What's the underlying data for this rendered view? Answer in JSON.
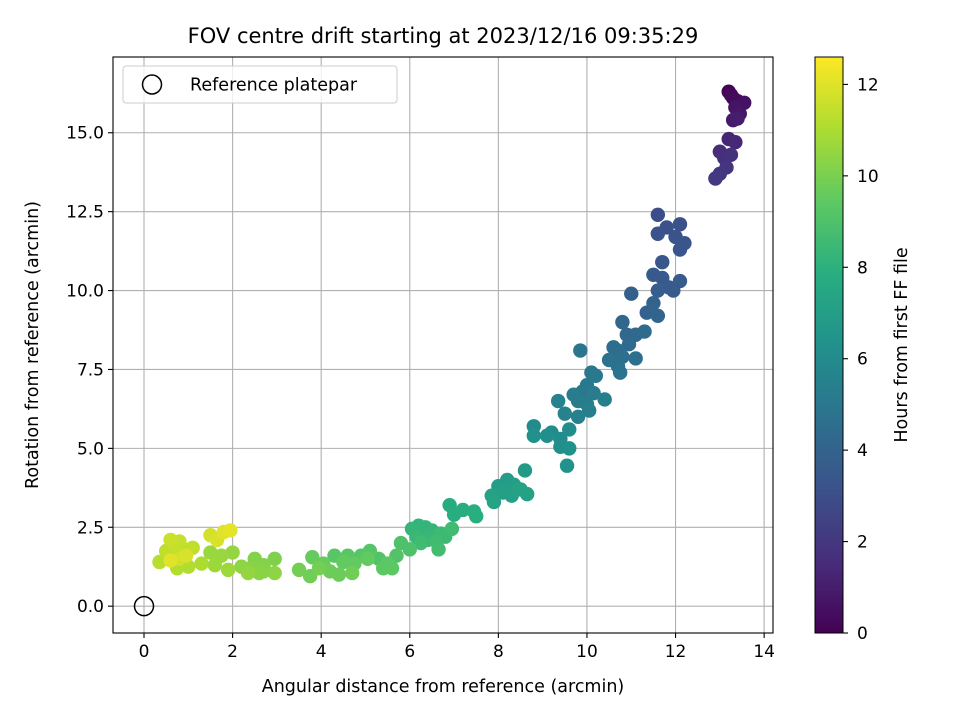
{
  "chart_data": {
    "type": "scatter",
    "title": "FOV centre drift starting at 2023/12/16 09:35:29",
    "xlabel": "Angular distance from reference (arcmin)",
    "ylabel": "Rotation from reference (arcmin)",
    "colorbar_label": "Hours from first FF file",
    "colormap": "viridis",
    "xlim": [
      -0.7,
      14.2
    ],
    "ylim": [
      -0.85,
      17.4
    ],
    "xticks": [
      0,
      2,
      4,
      6,
      8,
      10,
      12,
      14
    ],
    "xtick_labels": [
      "0",
      "2",
      "4",
      "6",
      "8",
      "10",
      "12",
      "14"
    ],
    "yticks": [
      0,
      2.5,
      5,
      7.5,
      10,
      12.5,
      15
    ],
    "ytick_labels": [
      "0.0",
      "2.5",
      "5.0",
      "7.5",
      "10.0",
      "12.5",
      "15.0"
    ],
    "clim": [
      0,
      12.6
    ],
    "colorbar_ticks": [
      0,
      2,
      4,
      6,
      8,
      10,
      12
    ],
    "colorbar_tick_labels": [
      "0",
      "2",
      "4",
      "6",
      "8",
      "10",
      "12"
    ],
    "grid": true,
    "legend": {
      "position": "top-left",
      "entries": [
        "Reference platepar"
      ]
    },
    "reference_point": {
      "x": 0,
      "y": 0,
      "label": "Reference platepar"
    },
    "series": [
      {
        "name": "",
        "points": [
          {
            "x": 13.2,
            "y": 16.3,
            "c": 0.1
          },
          {
            "x": 13.25,
            "y": 16.2,
            "c": 0.2
          },
          {
            "x": 13.3,
            "y": 16.1,
            "c": 0.3
          },
          {
            "x": 13.4,
            "y": 16.0,
            "c": 0.4
          },
          {
            "x": 13.55,
            "y": 15.95,
            "c": 0.6
          },
          {
            "x": 13.35,
            "y": 15.8,
            "c": 0.7
          },
          {
            "x": 13.45,
            "y": 15.6,
            "c": 0.8
          },
          {
            "x": 13.3,
            "y": 15.4,
            "c": 0.9
          },
          {
            "x": 13.4,
            "y": 15.45,
            "c": 1.0
          },
          {
            "x": 13.2,
            "y": 14.8,
            "c": 1.3
          },
          {
            "x": 13.35,
            "y": 14.7,
            "c": 1.4
          },
          {
            "x": 13.0,
            "y": 14.4,
            "c": 1.6
          },
          {
            "x": 13.1,
            "y": 14.2,
            "c": 1.7
          },
          {
            "x": 13.25,
            "y": 14.3,
            "c": 1.8
          },
          {
            "x": 13.15,
            "y": 13.9,
            "c": 1.9
          },
          {
            "x": 13.0,
            "y": 13.7,
            "c": 2.0
          },
          {
            "x": 12.9,
            "y": 13.55,
            "c": 2.1
          },
          {
            "x": 11.6,
            "y": 12.4,
            "c": 3.0
          },
          {
            "x": 11.8,
            "y": 12.0,
            "c": 3.1
          },
          {
            "x": 12.1,
            "y": 12.1,
            "c": 3.1
          },
          {
            "x": 11.6,
            "y": 11.8,
            "c": 3.2
          },
          {
            "x": 12.0,
            "y": 11.7,
            "c": 3.2
          },
          {
            "x": 12.2,
            "y": 11.5,
            "c": 3.3
          },
          {
            "x": 12.1,
            "y": 11.3,
            "c": 3.3
          },
          {
            "x": 11.7,
            "y": 10.9,
            "c": 3.4
          },
          {
            "x": 11.5,
            "y": 10.5,
            "c": 3.5
          },
          {
            "x": 11.7,
            "y": 10.4,
            "c": 3.5
          },
          {
            "x": 11.85,
            "y": 10.1,
            "c": 3.6
          },
          {
            "x": 12.1,
            "y": 10.3,
            "c": 3.6
          },
          {
            "x": 11.95,
            "y": 10.0,
            "c": 3.6
          },
          {
            "x": 11.6,
            "y": 10.0,
            "c": 3.7
          },
          {
            "x": 11.0,
            "y": 9.9,
            "c": 3.9
          },
          {
            "x": 11.5,
            "y": 9.6,
            "c": 4.0
          },
          {
            "x": 11.35,
            "y": 9.3,
            "c": 4.0
          },
          {
            "x": 11.6,
            "y": 9.2,
            "c": 4.1
          },
          {
            "x": 10.8,
            "y": 9.0,
            "c": 4.2
          },
          {
            "x": 10.9,
            "y": 8.6,
            "c": 4.3
          },
          {
            "x": 11.1,
            "y": 8.6,
            "c": 4.3
          },
          {
            "x": 11.3,
            "y": 8.7,
            "c": 4.4
          },
          {
            "x": 10.95,
            "y": 8.3,
            "c": 4.4
          },
          {
            "x": 10.7,
            "y": 8.1,
            "c": 4.5
          },
          {
            "x": 10.6,
            "y": 8.2,
            "c": 4.5
          },
          {
            "x": 10.8,
            "y": 7.9,
            "c": 4.6
          },
          {
            "x": 11.1,
            "y": 7.85,
            "c": 4.6
          },
          {
            "x": 10.5,
            "y": 7.8,
            "c": 4.7
          },
          {
            "x": 10.7,
            "y": 7.6,
            "c": 4.7
          },
          {
            "x": 10.75,
            "y": 7.4,
            "c": 4.8
          },
          {
            "x": 9.85,
            "y": 8.1,
            "c": 4.9
          },
          {
            "x": 10.1,
            "y": 7.4,
            "c": 5.0
          },
          {
            "x": 10.2,
            "y": 7.3,
            "c": 5.0
          },
          {
            "x": 10.0,
            "y": 7.0,
            "c": 5.1
          },
          {
            "x": 9.9,
            "y": 6.8,
            "c": 5.1
          },
          {
            "x": 10.15,
            "y": 6.75,
            "c": 5.2
          },
          {
            "x": 9.7,
            "y": 6.7,
            "c": 5.2
          },
          {
            "x": 9.8,
            "y": 6.5,
            "c": 5.3
          },
          {
            "x": 10.0,
            "y": 6.4,
            "c": 5.3
          },
          {
            "x": 10.4,
            "y": 6.55,
            "c": 5.4
          },
          {
            "x": 10.05,
            "y": 6.2,
            "c": 5.4
          },
          {
            "x": 9.8,
            "y": 6.0,
            "c": 5.5
          },
          {
            "x": 9.35,
            "y": 6.5,
            "c": 5.6
          },
          {
            "x": 9.5,
            "y": 6.1,
            "c": 5.6
          },
          {
            "x": 8.8,
            "y": 5.7,
            "c": 6.0
          },
          {
            "x": 9.2,
            "y": 5.5,
            "c": 6.0
          },
          {
            "x": 9.6,
            "y": 5.6,
            "c": 6.1
          },
          {
            "x": 9.4,
            "y": 5.3,
            "c": 6.1
          },
          {
            "x": 9.1,
            "y": 5.4,
            "c": 6.2
          },
          {
            "x": 9.4,
            "y": 5.05,
            "c": 6.2
          },
          {
            "x": 9.6,
            "y": 5.0,
            "c": 6.3
          },
          {
            "x": 9.55,
            "y": 4.45,
            "c": 6.4
          },
          {
            "x": 8.8,
            "y": 5.4,
            "c": 6.3
          },
          {
            "x": 8.6,
            "y": 4.3,
            "c": 6.8
          },
          {
            "x": 8.2,
            "y": 4.0,
            "c": 6.9
          },
          {
            "x": 8.0,
            "y": 3.8,
            "c": 6.9
          },
          {
            "x": 8.35,
            "y": 3.85,
            "c": 7.0
          },
          {
            "x": 8.5,
            "y": 3.7,
            "c": 7.0
          },
          {
            "x": 8.1,
            "y": 3.6,
            "c": 7.1
          },
          {
            "x": 8.3,
            "y": 3.5,
            "c": 7.1
          },
          {
            "x": 7.85,
            "y": 3.5,
            "c": 7.2
          },
          {
            "x": 8.65,
            "y": 3.55,
            "c": 7.2
          },
          {
            "x": 7.9,
            "y": 3.3,
            "c": 7.3
          },
          {
            "x": 8.45,
            "y": 3.7,
            "c": 7.2
          },
          {
            "x": 6.9,
            "y": 3.2,
            "c": 7.7
          },
          {
            "x": 7.2,
            "y": 3.05,
            "c": 7.8
          },
          {
            "x": 7.0,
            "y": 2.9,
            "c": 7.8
          },
          {
            "x": 7.45,
            "y": 3.0,
            "c": 7.9
          },
          {
            "x": 7.5,
            "y": 2.85,
            "c": 7.9
          },
          {
            "x": 6.2,
            "y": 2.55,
            "c": 8.2
          },
          {
            "x": 6.35,
            "y": 2.5,
            "c": 8.2
          },
          {
            "x": 6.5,
            "y": 2.4,
            "c": 8.3
          },
          {
            "x": 6.05,
            "y": 2.45,
            "c": 8.3
          },
          {
            "x": 6.15,
            "y": 2.2,
            "c": 8.4
          },
          {
            "x": 6.4,
            "y": 2.1,
            "c": 8.4
          },
          {
            "x": 6.7,
            "y": 2.3,
            "c": 8.5
          },
          {
            "x": 6.8,
            "y": 2.2,
            "c": 8.5
          },
          {
            "x": 6.6,
            "y": 2.05,
            "c": 8.6
          },
          {
            "x": 6.95,
            "y": 2.45,
            "c": 8.6
          },
          {
            "x": 6.25,
            "y": 2.0,
            "c": 8.6
          },
          {
            "x": 6.65,
            "y": 1.8,
            "c": 8.7
          },
          {
            "x": 5.8,
            "y": 2.0,
            "c": 9.0
          },
          {
            "x": 6.0,
            "y": 1.8,
            "c": 9.0
          },
          {
            "x": 5.7,
            "y": 1.6,
            "c": 9.1
          },
          {
            "x": 5.3,
            "y": 1.5,
            "c": 9.1
          },
          {
            "x": 5.1,
            "y": 1.75,
            "c": 9.2
          },
          {
            "x": 4.9,
            "y": 1.6,
            "c": 9.2
          },
          {
            "x": 4.6,
            "y": 1.6,
            "c": 9.3
          },
          {
            "x": 4.3,
            "y": 1.6,
            "c": 9.3
          },
          {
            "x": 5.4,
            "y": 1.2,
            "c": 9.4
          },
          {
            "x": 5.6,
            "y": 1.2,
            "c": 9.4
          },
          {
            "x": 5.5,
            "y": 1.35,
            "c": 9.4
          },
          {
            "x": 4.75,
            "y": 1.35,
            "c": 9.5
          },
          {
            "x": 4.5,
            "y": 1.4,
            "c": 9.5
          },
          {
            "x": 4.05,
            "y": 1.35,
            "c": 9.6
          },
          {
            "x": 3.8,
            "y": 1.55,
            "c": 9.6
          },
          {
            "x": 4.2,
            "y": 1.1,
            "c": 9.7
          },
          {
            "x": 4.4,
            "y": 1.0,
            "c": 9.7
          },
          {
            "x": 4.7,
            "y": 1.05,
            "c": 9.8
          },
          {
            "x": 3.75,
            "y": 0.95,
            "c": 9.8
          },
          {
            "x": 3.5,
            "y": 1.15,
            "c": 9.9
          },
          {
            "x": 3.95,
            "y": 1.2,
            "c": 9.9
          },
          {
            "x": 5.05,
            "y": 1.5,
            "c": 9.5
          },
          {
            "x": 2.95,
            "y": 1.5,
            "c": 10.1
          },
          {
            "x": 2.7,
            "y": 1.3,
            "c": 10.2
          },
          {
            "x": 2.5,
            "y": 1.5,
            "c": 10.2
          },
          {
            "x": 2.4,
            "y": 1.2,
            "c": 10.3
          },
          {
            "x": 2.6,
            "y": 1.05,
            "c": 10.3
          },
          {
            "x": 2.2,
            "y": 1.25,
            "c": 10.4
          },
          {
            "x": 2.95,
            "y": 1.05,
            "c": 10.4
          },
          {
            "x": 2.35,
            "y": 1.05,
            "c": 10.5
          },
          {
            "x": 2.0,
            "y": 1.7,
            "c": 10.5
          },
          {
            "x": 1.75,
            "y": 1.6,
            "c": 10.6
          },
          {
            "x": 1.5,
            "y": 1.7,
            "c": 10.6
          },
          {
            "x": 1.9,
            "y": 1.15,
            "c": 10.7
          },
          {
            "x": 1.6,
            "y": 1.3,
            "c": 10.7
          },
          {
            "x": 2.7,
            "y": 1.1,
            "c": 10.3
          },
          {
            "x": 1.3,
            "y": 1.35,
            "c": 11.0
          },
          {
            "x": 1.0,
            "y": 1.25,
            "c": 11.1
          },
          {
            "x": 0.75,
            "y": 1.2,
            "c": 11.1
          },
          {
            "x": 0.35,
            "y": 1.4,
            "c": 11.2
          },
          {
            "x": 0.5,
            "y": 1.5,
            "c": 11.2
          },
          {
            "x": 0.65,
            "y": 1.65,
            "c": 11.3
          },
          {
            "x": 0.9,
            "y": 1.8,
            "c": 11.3
          },
          {
            "x": 0.5,
            "y": 1.75,
            "c": 11.4
          },
          {
            "x": 1.1,
            "y": 1.85,
            "c": 11.4
          },
          {
            "x": 0.7,
            "y": 1.9,
            "c": 11.5
          },
          {
            "x": 0.8,
            "y": 2.05,
            "c": 11.5
          },
          {
            "x": 0.6,
            "y": 2.1,
            "c": 11.6
          },
          {
            "x": 1.5,
            "y": 2.25,
            "c": 11.8
          },
          {
            "x": 1.65,
            "y": 2.1,
            "c": 11.9
          },
          {
            "x": 1.8,
            "y": 2.35,
            "c": 12.0
          },
          {
            "x": 1.95,
            "y": 2.4,
            "c": 12.1
          },
          {
            "x": 0.8,
            "y": 1.5,
            "c": 11.7
          },
          {
            "x": 0.95,
            "y": 1.6,
            "c": 11.9
          },
          {
            "x": 0.6,
            "y": 1.45,
            "c": 12.0
          }
        ]
      }
    ]
  }
}
